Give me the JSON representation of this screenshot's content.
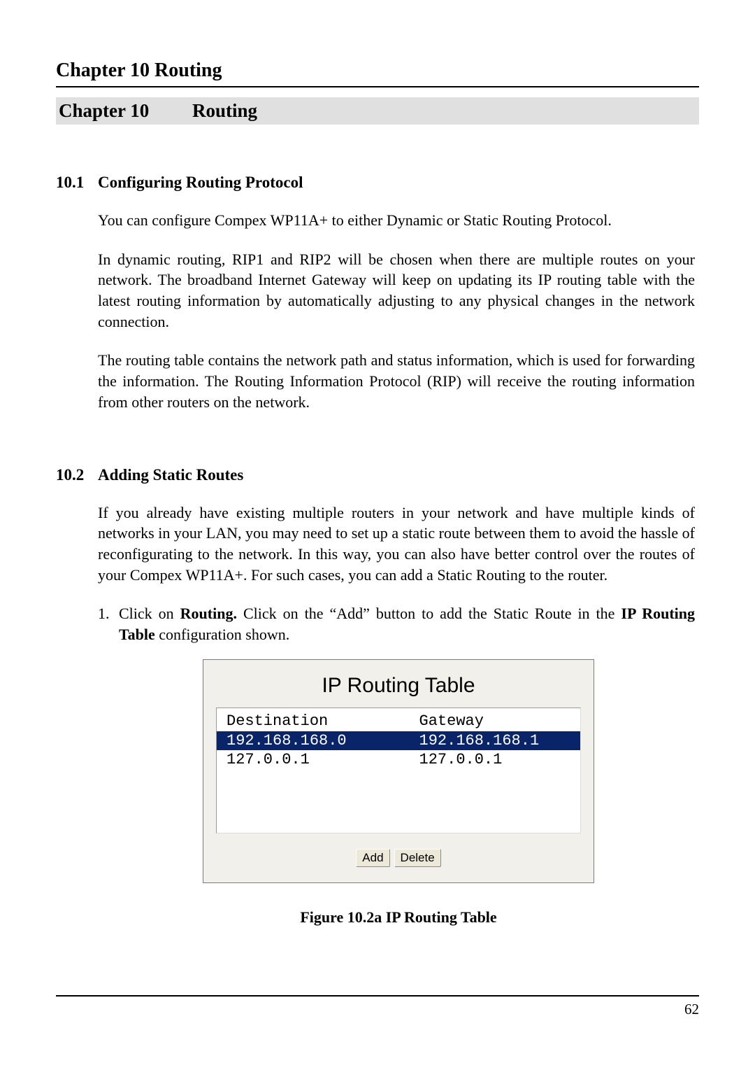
{
  "running_header": "Chapter 10    Routing",
  "chapter_band": {
    "chapter": "Chapter 10",
    "title": "Routing"
  },
  "sections": {
    "s1": {
      "num": "10.1",
      "title": "Configuring Routing Protocol",
      "p1": "You can configure Compex WP11A+ to either Dynamic or Static Routing Protocol.",
      "p2": "In dynamic routing, RIP1 and RIP2 will be chosen when there are multiple routes on your network. The broadband Internet Gateway will keep on updating its IP routing table with the latest routing information by automatically adjusting to any physical changes in the network connection.",
      "p3": "The routing table contains the network path and status information, which is used for forwarding the information. The Routing Information Protocol (RIP) will receive the routing information from other routers on the network."
    },
    "s2": {
      "num": "10.2",
      "title": "Adding Static Routes",
      "p1": "If you already have existing multiple routers in your network and have multiple kinds of networks in your LAN, you may need to set up a static route between them to avoid the hassle of reconfigurating to the network. In this way, you can also have better control over the routes of your Compex WP11A+. For such cases, you can add a Static Routing to the router.",
      "li1": {
        "num": "1.",
        "t1": "Click on ",
        "b1": "Routing.",
        "t2": " Click on the “Add” button to add the Static Route in the ",
        "b2": "IP Routing Table",
        "t3": " configuration shown."
      }
    }
  },
  "figure": {
    "title": "IP Routing Table",
    "columns": [
      "Destination",
      "Gateway"
    ],
    "rows": [
      {
        "dest": "192.168.168.0",
        "gw": "192.168.168.1",
        "selected": true
      },
      {
        "dest": "127.0.0.1",
        "gw": "127.0.0.1",
        "selected": false
      }
    ],
    "buttons": {
      "add": "Add",
      "delete": "Delete"
    },
    "caption": "Figure 10.2a     IP Routing Table",
    "colors": {
      "panel_bg": "#f2f0ea",
      "box_bg": "#ffffff",
      "selected_bg": "#0a246a",
      "selected_fg": "#ffffff",
      "btn_bg": "#ece9d8"
    }
  },
  "page_number": "62"
}
